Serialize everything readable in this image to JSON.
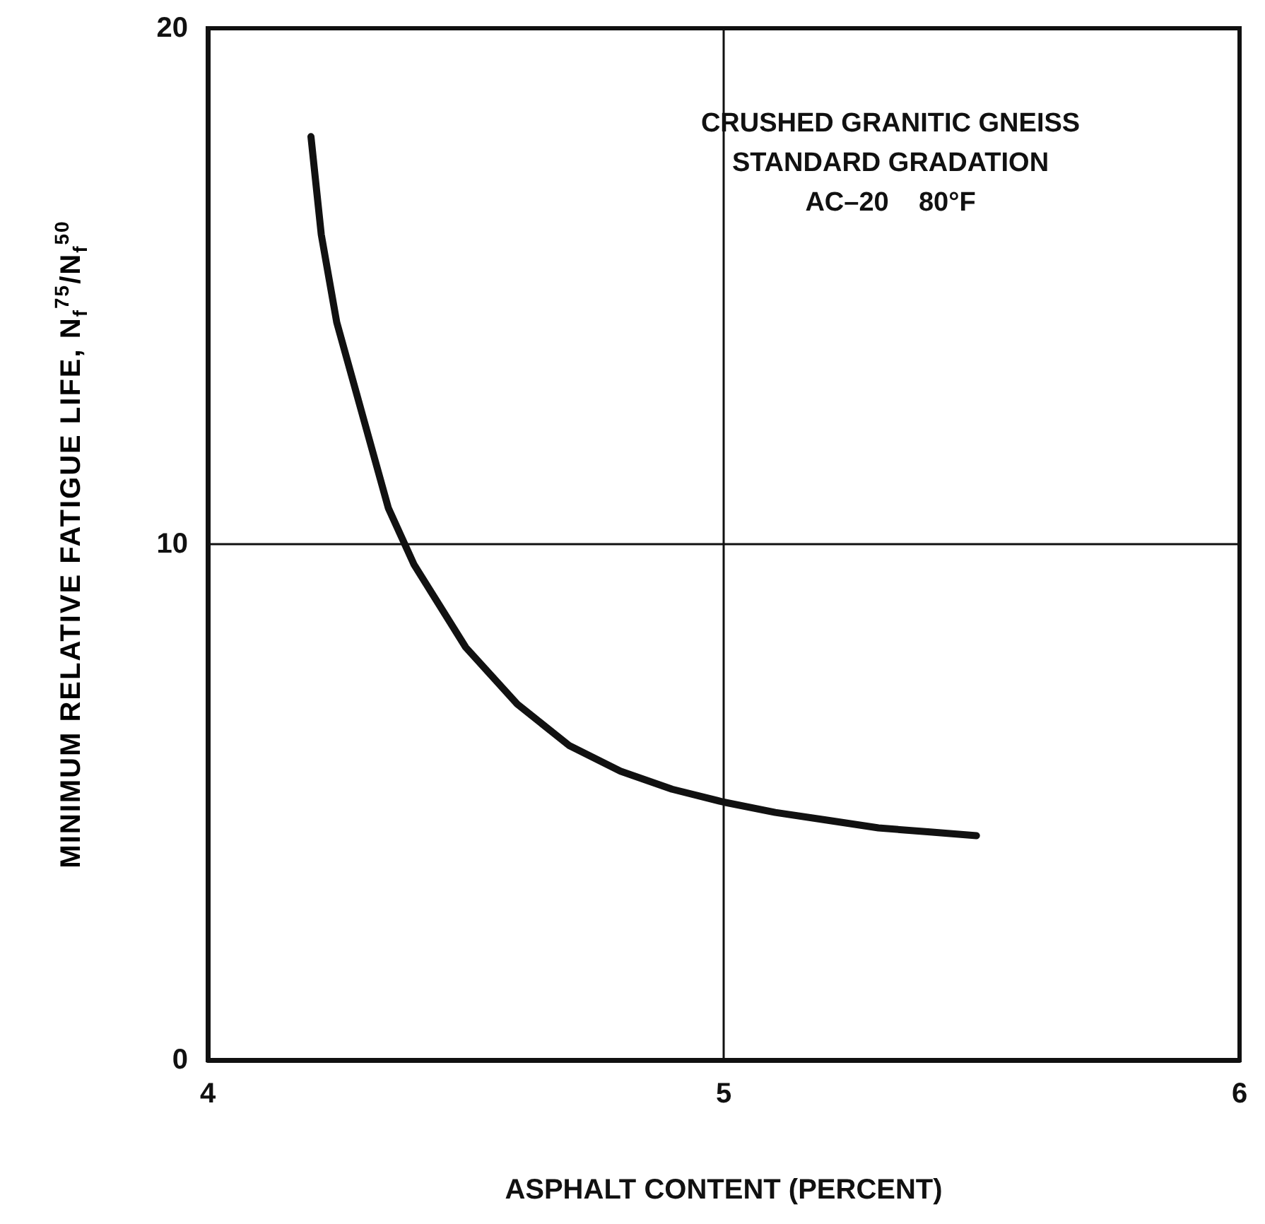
{
  "chart_data": {
    "type": "line",
    "xlabel": "ASPHALT CONTENT (PERCENT)",
    "ylabel": "MINIMUM RELATIVE FATIGUE LIFE, N$_{f}$$^{75}$/N$_{f}$$^{50}$",
    "annotations": [
      "CRUSHED GRANITIC GNEISS",
      "STANDARD GRADATION",
      "AC–20    80°F"
    ],
    "x": [
      4.2,
      4.22,
      4.25,
      4.3,
      4.35,
      4.4,
      4.5,
      4.6,
      4.7,
      4.8,
      4.9,
      5.0,
      5.1,
      5.2,
      5.3,
      5.4,
      5.49
    ],
    "series": [
      {
        "color": "#111111",
        "values": [
          17.9,
          16.0,
          14.3,
          12.5,
          10.7,
          9.6,
          8.0,
          6.9,
          6.1,
          5.6,
          5.25,
          5.0,
          4.8,
          4.65,
          4.5,
          4.42,
          4.35
        ]
      }
    ],
    "xlim": [
      4,
      6
    ],
    "xticks": [
      4,
      5,
      6
    ],
    "ylim": [
      0,
      20
    ],
    "yticks": [
      0,
      10,
      20
    ],
    "grid": true,
    "marker": "none",
    "line_style": "solid"
  }
}
